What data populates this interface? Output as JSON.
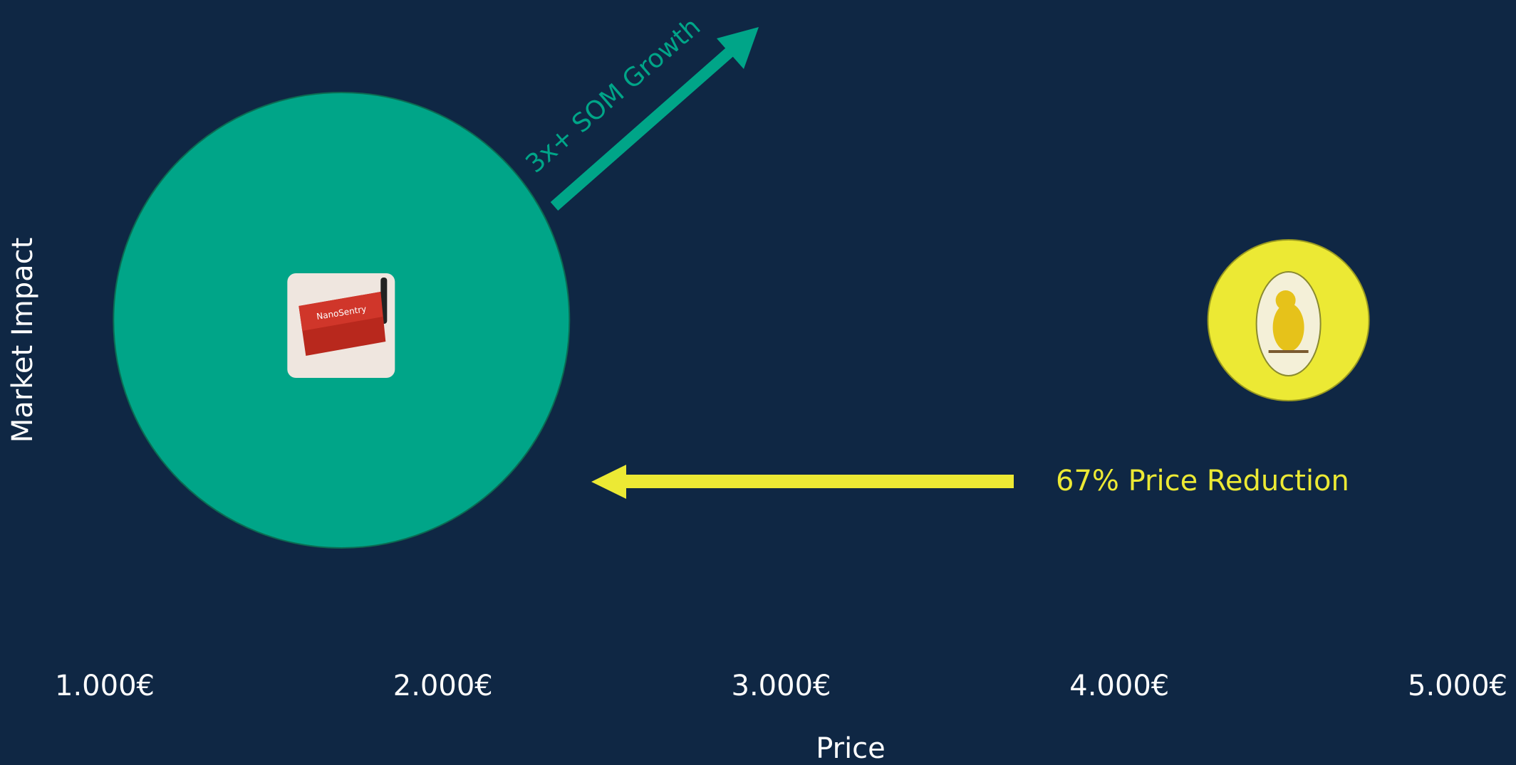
{
  "chart_data": {
    "type": "bubble",
    "x_label": "Price",
    "y_label": "Market Impact",
    "xlim": [
      1000,
      5000
    ],
    "xticks": [
      {
        "value": 1000,
        "label": "1.000€"
      },
      {
        "value": 2000,
        "label": "2.000€"
      },
      {
        "value": 3000,
        "label": "3.000€"
      },
      {
        "value": 4000,
        "label": "4.000€"
      },
      {
        "value": 5000,
        "label": "5.000€"
      }
    ],
    "points": [
      {
        "x": 1700,
        "color": "#00a588",
        "product_label": "NanoSentry"
      },
      {
        "x": 4500,
        "color": "#ece934"
      }
    ],
    "annotations": {
      "growth": "3x+ SOM Growth",
      "reduction": "67% Price Reduction"
    }
  }
}
